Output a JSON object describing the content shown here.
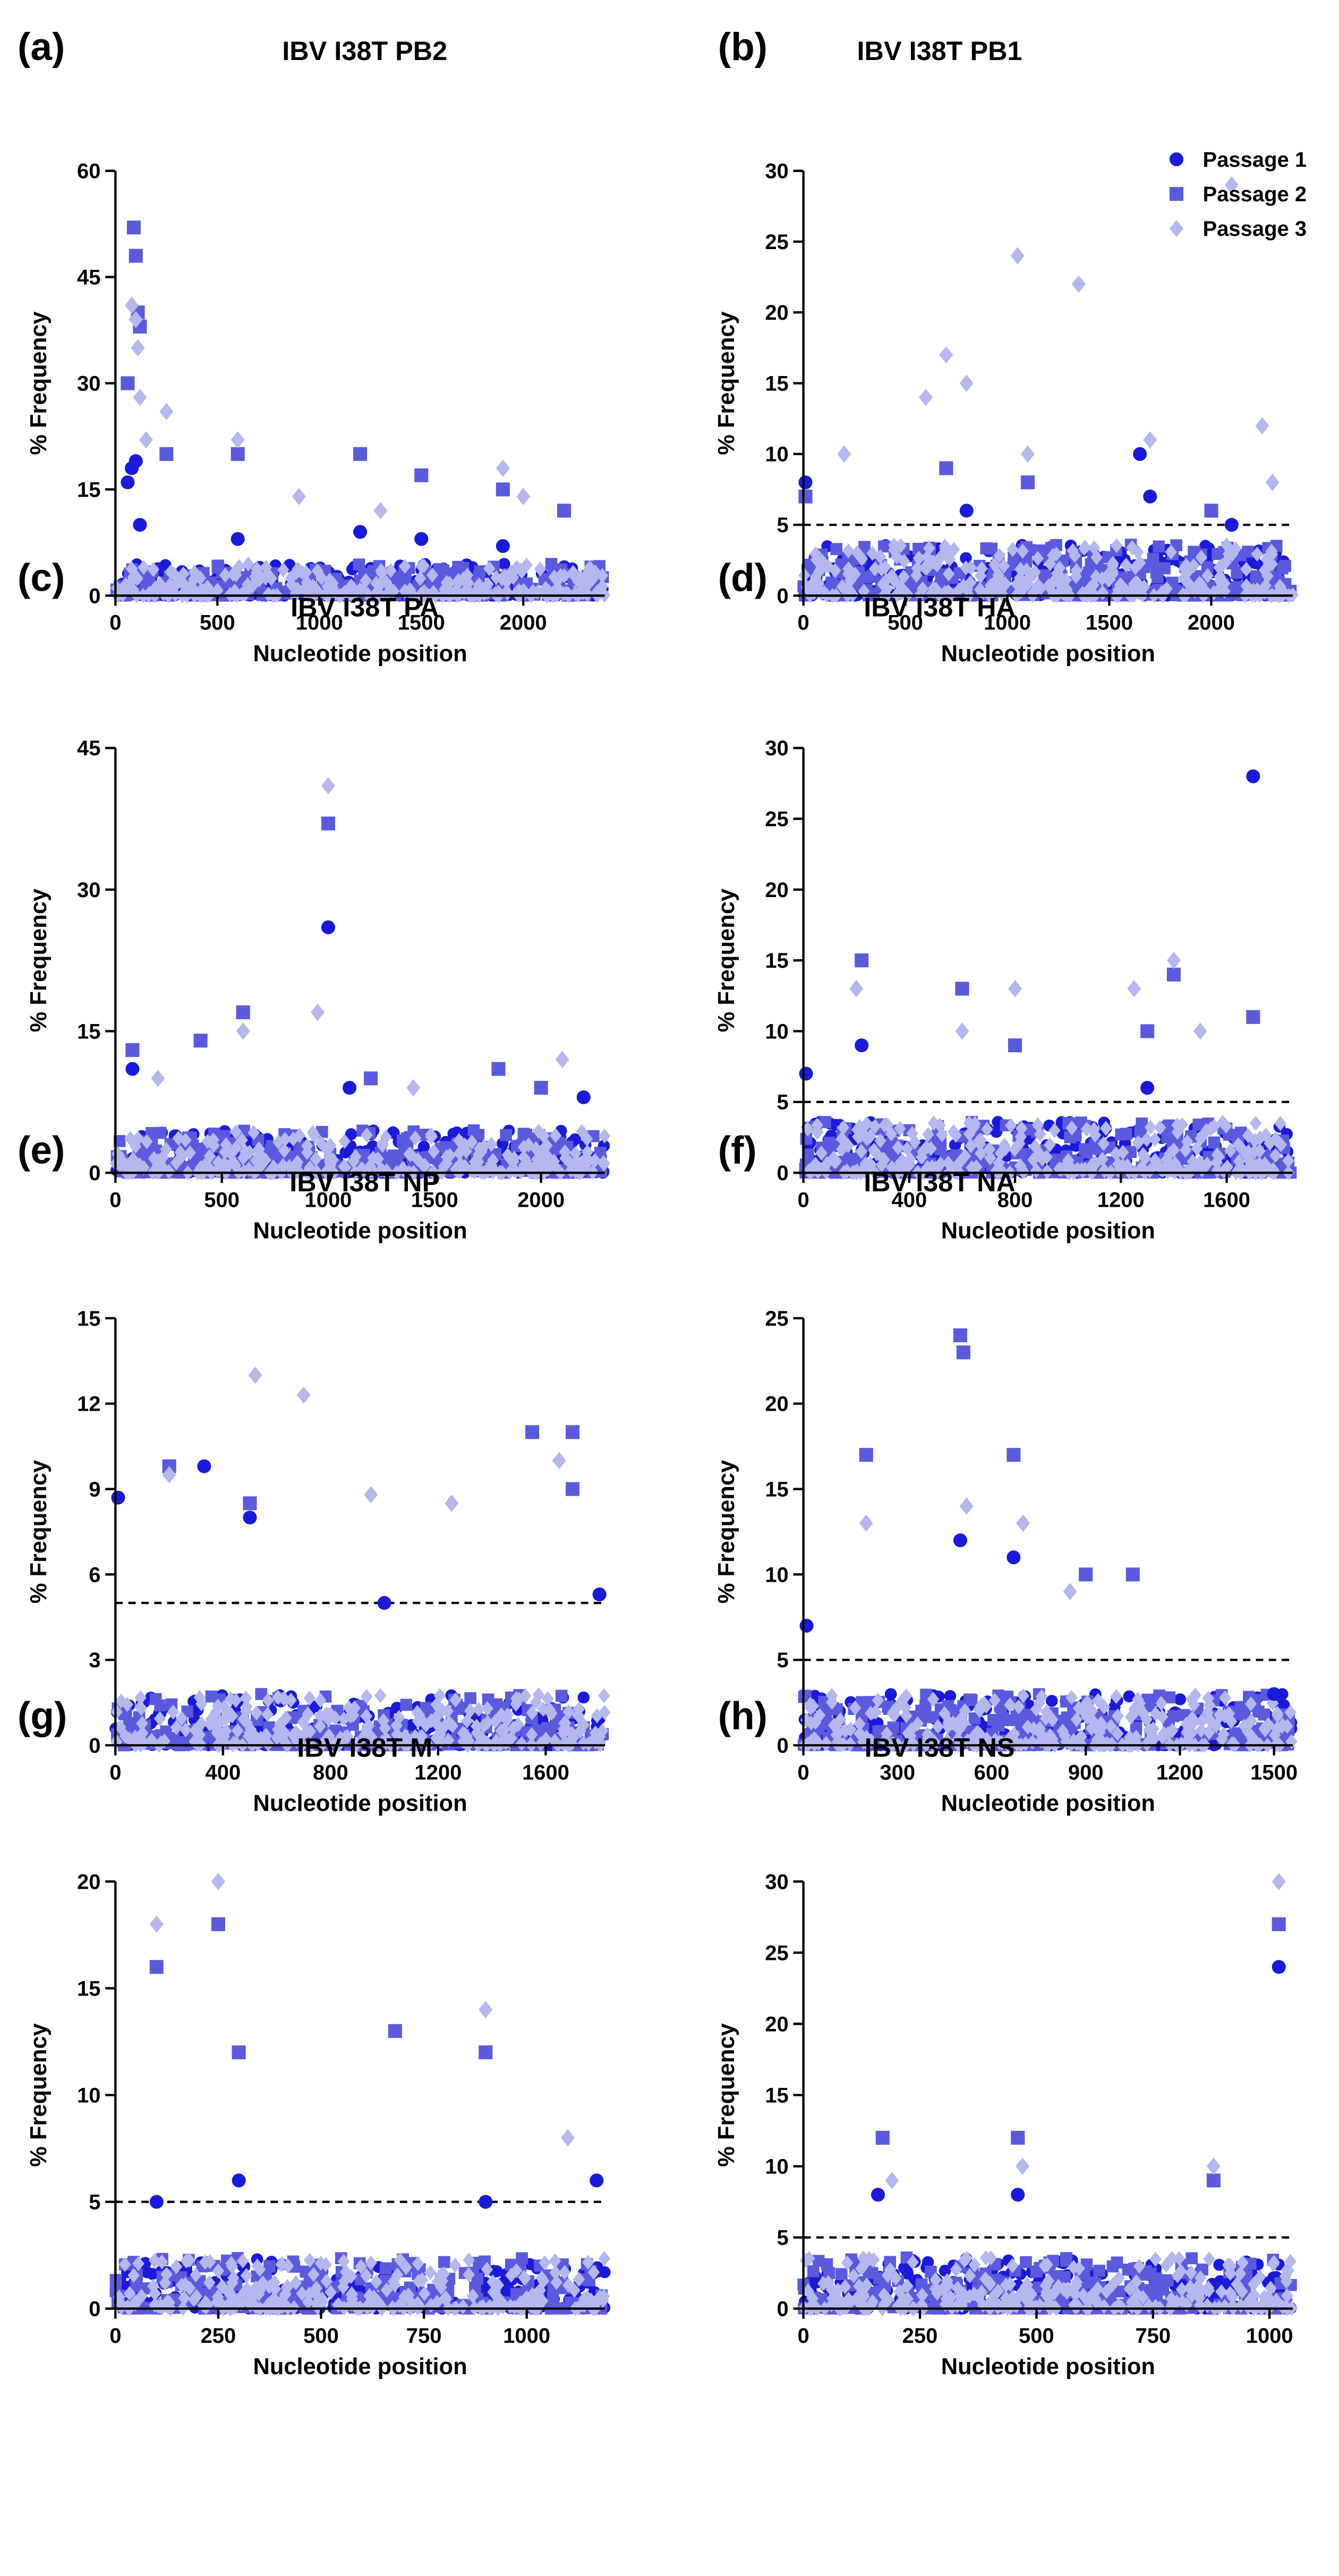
{
  "legend": {
    "entries": [
      {
        "name": "Passage 1",
        "marker": "circle",
        "color": "#1a1adb"
      },
      {
        "name": "Passage 2",
        "marker": "square",
        "color": "#5a5adf"
      },
      {
        "name": "Passage 3",
        "marker": "diamond",
        "color": "#b4b8ee"
      }
    ]
  },
  "chart_data": [
    {
      "panel": "(a)",
      "type": "scatter",
      "title": "IBV I38T PB2",
      "xlabel": "Nucleotide position",
      "ylabel": "% Frequency",
      "xlim": [
        0,
        2400
      ],
      "ylim": [
        0,
        60
      ],
      "xticks": [
        0,
        500,
        1000,
        1500,
        2000
      ],
      "yticks": [
        0,
        15,
        30,
        45,
        60
      ],
      "threshold": 5,
      "show_threshold": false,
      "series": [
        {
          "name": "Passage 1",
          "points": [
            [
              60,
              16
            ],
            [
              80,
              18
            ],
            [
              100,
              19
            ],
            [
              120,
              10
            ],
            [
              600,
              8
            ],
            [
              1200,
              9
            ],
            [
              1500,
              8
            ],
            [
              1900,
              7
            ]
          ]
        },
        {
          "name": "Passage 2",
          "points": [
            [
              60,
              30
            ],
            [
              90,
              52
            ],
            [
              100,
              48
            ],
            [
              110,
              40
            ],
            [
              120,
              38
            ],
            [
              250,
              20
            ],
            [
              600,
              20
            ],
            [
              1200,
              20
            ],
            [
              1500,
              17
            ],
            [
              1900,
              15
            ],
            [
              2200,
              12
            ]
          ]
        },
        {
          "name": "Passage 3",
          "points": [
            [
              80,
              41
            ],
            [
              100,
              39
            ],
            [
              110,
              35
            ],
            [
              120,
              28
            ],
            [
              150,
              22
            ],
            [
              250,
              26
            ],
            [
              600,
              22
            ],
            [
              900,
              14
            ],
            [
              1300,
              12
            ],
            [
              1900,
              18
            ],
            [
              2000,
              14
            ]
          ]
        }
      ]
    },
    {
      "panel": "(b)",
      "type": "scatter",
      "title": "IBV I38T PB1",
      "xlabel": "Nucleotide position",
      "ylabel": "% Frequency",
      "xlim": [
        0,
        2400
      ],
      "ylim": [
        0,
        30
      ],
      "xticks": [
        0,
        500,
        1000,
        1500,
        2000
      ],
      "yticks": [
        0,
        5,
        10,
        15,
        20,
        25,
        30
      ],
      "threshold": 5,
      "show_threshold": true,
      "series": [
        {
          "name": "Passage 1",
          "points": [
            [
              10,
              8
            ],
            [
              800,
              6
            ],
            [
              1650,
              10
            ],
            [
              1700,
              7
            ],
            [
              2100,
              5
            ]
          ]
        },
        {
          "name": "Passage 2",
          "points": [
            [
              10,
              7
            ],
            [
              700,
              9
            ],
            [
              1100,
              8
            ],
            [
              2000,
              6
            ]
          ]
        },
        {
          "name": "Passage 3",
          "points": [
            [
              200,
              10
            ],
            [
              600,
              14
            ],
            [
              700,
              17
            ],
            [
              800,
              15
            ],
            [
              1050,
              24
            ],
            [
              1100,
              10
            ],
            [
              1350,
              22
            ],
            [
              1700,
              11
            ],
            [
              2100,
              29
            ],
            [
              2250,
              12
            ],
            [
              2300,
              8
            ]
          ]
        }
      ]
    },
    {
      "panel": "(c)",
      "type": "scatter",
      "title": "IBV I38T PA",
      "xlabel": "Nucleotide position",
      "ylabel": "% Frequency",
      "xlim": [
        0,
        2300
      ],
      "ylim": [
        0,
        45
      ],
      "xticks": [
        0,
        500,
        1000,
        1500,
        2000
      ],
      "yticks": [
        0,
        15,
        30,
        45
      ],
      "threshold": 5,
      "show_threshold": false,
      "series": [
        {
          "name": "Passage 1",
          "points": [
            [
              80,
              11
            ],
            [
              1000,
              26
            ],
            [
              1100,
              9
            ],
            [
              2200,
              8
            ]
          ]
        },
        {
          "name": "Passage 2",
          "points": [
            [
              80,
              13
            ],
            [
              400,
              14
            ],
            [
              600,
              17
            ],
            [
              1000,
              37
            ],
            [
              1200,
              10
            ],
            [
              1800,
              11
            ],
            [
              2000,
              9
            ]
          ]
        },
        {
          "name": "Passage 3",
          "points": [
            [
              200,
              10
            ],
            [
              600,
              15
            ],
            [
              950,
              17
            ],
            [
              1000,
              41
            ],
            [
              1400,
              9
            ],
            [
              2100,
              12
            ]
          ]
        }
      ]
    },
    {
      "panel": "(d)",
      "type": "scatter",
      "title": "IBV I38T HA",
      "xlabel": "Nucleotide position",
      "ylabel": "% Frequency",
      "xlim": [
        0,
        1850
      ],
      "ylim": [
        0,
        30
      ],
      "xticks": [
        0,
        400,
        800,
        1200,
        1600
      ],
      "yticks": [
        0,
        5,
        10,
        15,
        20,
        25,
        30
      ],
      "threshold": 5,
      "show_threshold": true,
      "series": [
        {
          "name": "Passage 1",
          "points": [
            [
              10,
              7
            ],
            [
              220,
              9
            ],
            [
              1700,
              28
            ],
            [
              1300,
              6
            ]
          ]
        },
        {
          "name": "Passage 2",
          "points": [
            [
              220,
              15
            ],
            [
              600,
              13
            ],
            [
              800,
              9
            ],
            [
              1300,
              10
            ],
            [
              1400,
              14
            ],
            [
              1700,
              11
            ]
          ]
        },
        {
          "name": "Passage 3",
          "points": [
            [
              200,
              13
            ],
            [
              600,
              10
            ],
            [
              800,
              13
            ],
            [
              1250,
              13
            ],
            [
              1400,
              15
            ],
            [
              1500,
              10
            ]
          ]
        }
      ]
    },
    {
      "panel": "(e)",
      "type": "scatter",
      "title": "IBV I38T NP",
      "xlabel": "Nucleotide position",
      "ylabel": "% Frequency",
      "xlim": [
        0,
        1820
      ],
      "ylim": [
        0,
        15
      ],
      "xticks": [
        0,
        400,
        800,
        1200,
        1600
      ],
      "yticks": [
        0,
        3,
        6,
        9,
        12,
        15
      ],
      "threshold": 5,
      "show_threshold": true,
      "series": [
        {
          "name": "Passage 1",
          "points": [
            [
              10,
              8.7
            ],
            [
              330,
              9.8
            ],
            [
              500,
              8
            ],
            [
              1000,
              5
            ],
            [
              1800,
              5.3
            ]
          ]
        },
        {
          "name": "Passage 2",
          "points": [
            [
              200,
              9.8
            ],
            [
              500,
              8.5
            ],
            [
              1550,
              11
            ],
            [
              1700,
              11
            ],
            [
              1700,
              9
            ]
          ]
        },
        {
          "name": "Passage 3",
          "points": [
            [
              200,
              9.5
            ],
            [
              520,
              13
            ],
            [
              700,
              12.3
            ],
            [
              950,
              8.8
            ],
            [
              1250,
              8.5
            ],
            [
              1650,
              10
            ]
          ]
        }
      ]
    },
    {
      "panel": "(f)",
      "type": "scatter",
      "title": "IBV I38T NA",
      "xlabel": "Nucleotide position",
      "ylabel": "% Frequency",
      "xlim": [
        0,
        1560
      ],
      "ylim": [
        0,
        25
      ],
      "xticks": [
        0,
        300,
        600,
        900,
        1200,
        1500
      ],
      "yticks": [
        0,
        5,
        10,
        15,
        20,
        25
      ],
      "threshold": 5,
      "show_threshold": true,
      "series": [
        {
          "name": "Passage 1",
          "points": [
            [
              10,
              7
            ],
            [
              500,
              12
            ],
            [
              670,
              11
            ],
            [
              1500,
              3
            ]
          ]
        },
        {
          "name": "Passage 2",
          "points": [
            [
              200,
              17
            ],
            [
              500,
              24
            ],
            [
              510,
              23
            ],
            [
              670,
              17
            ],
            [
              900,
              10
            ],
            [
              1050,
              10
            ]
          ]
        },
        {
          "name": "Passage 3",
          "points": [
            [
              200,
              13
            ],
            [
              520,
              14
            ],
            [
              700,
              13
            ],
            [
              850,
              9
            ]
          ]
        }
      ]
    },
    {
      "panel": "(g)",
      "type": "scatter",
      "title": "IBV I38T M",
      "xlabel": "Nucleotide position",
      "ylabel": "% Frequency",
      "xlim": [
        0,
        1190
      ],
      "ylim": [
        0,
        20
      ],
      "xticks": [
        0,
        250,
        500,
        750,
        1000
      ],
      "yticks": [
        0,
        5,
        10,
        15,
        20
      ],
      "threshold": 5,
      "show_threshold": true,
      "series": [
        {
          "name": "Passage 1",
          "points": [
            [
              100,
              5
            ],
            [
              300,
              6
            ],
            [
              900,
              5
            ],
            [
              1170,
              6
            ]
          ]
        },
        {
          "name": "Passage 2",
          "points": [
            [
              100,
              16
            ],
            [
              250,
              18
            ],
            [
              300,
              12
            ],
            [
              680,
              13
            ],
            [
              900,
              12
            ]
          ]
        },
        {
          "name": "Passage 3",
          "points": [
            [
              100,
              18
            ],
            [
              250,
              20
            ],
            [
              900,
              14
            ],
            [
              1100,
              8
            ]
          ]
        }
      ]
    },
    {
      "panel": "(h)",
      "type": "scatter",
      "title": "IBV I38T NS",
      "xlabel": "Nucleotide position",
      "ylabel": "% Frequency",
      "xlim": [
        0,
        1050
      ],
      "ylim": [
        0,
        30
      ],
      "xticks": [
        0,
        250,
        500,
        750,
        1000
      ],
      "yticks": [
        0,
        5,
        10,
        15,
        20,
        25,
        30
      ],
      "threshold": 5,
      "show_threshold": true,
      "series": [
        {
          "name": "Passage 1",
          "points": [
            [
              160,
              8
            ],
            [
              460,
              8
            ],
            [
              1020,
              24
            ]
          ]
        },
        {
          "name": "Passage 2",
          "points": [
            [
              170,
              12
            ],
            [
              460,
              12
            ],
            [
              1020,
              27
            ],
            [
              880,
              9
            ]
          ]
        },
        {
          "name": "Passage 3",
          "points": [
            [
              190,
              9
            ],
            [
              470,
              10
            ],
            [
              1020,
              30
            ],
            [
              880,
              10
            ]
          ]
        }
      ]
    }
  ]
}
